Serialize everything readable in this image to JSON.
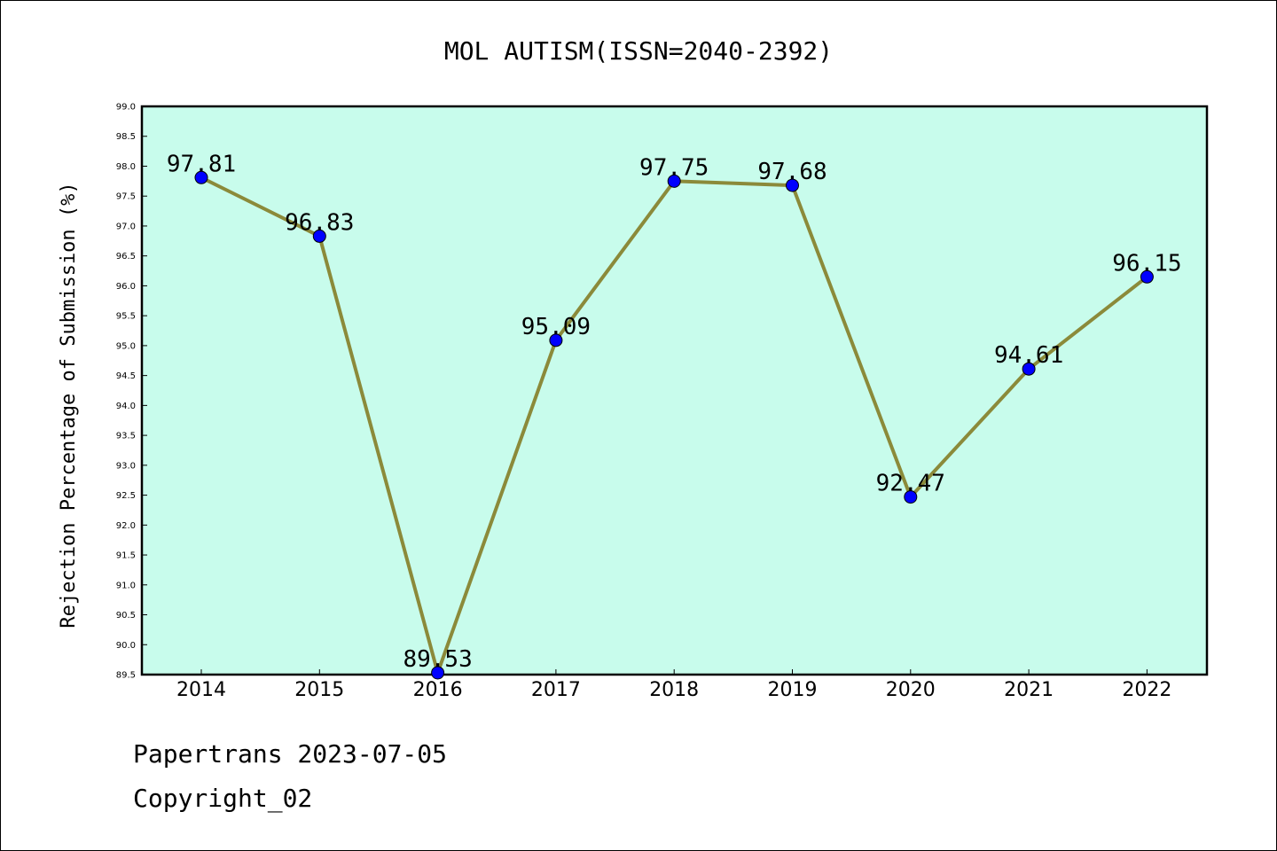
{
  "chart_data": {
    "type": "line",
    "title": "MOL AUTISM(ISSN=2040-2392)",
    "xlabel": "",
    "ylabel": "Rejection Percentage of Submission (%)",
    "categories": [
      "2014",
      "2015",
      "2016",
      "2017",
      "2018",
      "2019",
      "2020",
      "2021",
      "2022"
    ],
    "series": [
      {
        "values": [
          97.81,
          96.83,
          89.53,
          95.09,
          97.75,
          97.68,
          92.47,
          94.61,
          96.15
        ],
        "data_labels": [
          "97.81",
          "96.83",
          "89.53",
          "95.09",
          "97.75",
          "97.68",
          "92.47",
          "94.61",
          "96.15"
        ]
      }
    ],
    "ylim": [
      89.5,
      99.0
    ],
    "yticks": [
      "89.5",
      "90.0",
      "90.5",
      "91.0",
      "91.5",
      "92.0",
      "92.5",
      "93.0",
      "93.5",
      "94.0",
      "94.5",
      "95.0",
      "95.5",
      "96.0",
      "96.5",
      "97.0",
      "97.5",
      "98.0",
      "98.5",
      "99.0"
    ],
    "grid": false,
    "legend": "none",
    "colors": {
      "plot_background": "#c8fcec",
      "line": "#8b8a3a",
      "marker": "#0000ff"
    }
  },
  "footer": {
    "line1": "Papertrans 2023-07-05",
    "line2": "Copyright_02"
  }
}
